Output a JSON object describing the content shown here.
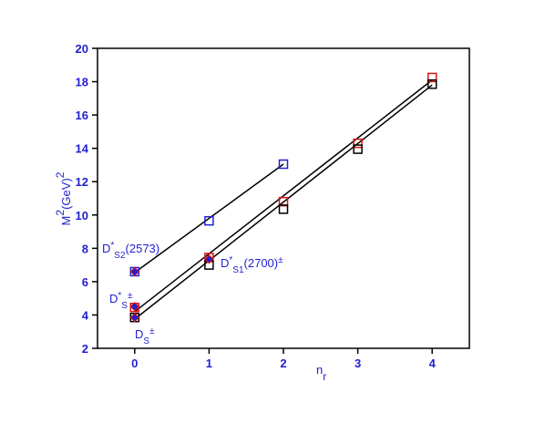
{
  "chart_data": {
    "type": "scatter",
    "xlabel": {
      "base": "n",
      "sub": "r"
    },
    "ylabel": {
      "base": "M",
      "sup": "2",
      "mid": "(GeV)",
      "sup2": "2"
    },
    "xlim": [
      -0.5,
      4.5
    ],
    "ylim": [
      2,
      20
    ],
    "xticks": [
      0,
      1,
      2,
      3,
      4
    ],
    "yticks": [
      2,
      4,
      6,
      8,
      10,
      12,
      14,
      16,
      18,
      20
    ],
    "axis_color": "#1f1fd0",
    "series": [
      {
        "marker": "open-square",
        "color": "#1f1fd0",
        "x": [
          0,
          1,
          2
        ],
        "values": [
          6.6,
          9.65,
          13.05
        ]
      },
      {
        "marker": "open-square",
        "color": "#e01010",
        "x": [
          0,
          1,
          2,
          3,
          4
        ],
        "values": [
          4.45,
          7.45,
          10.8,
          14.3,
          18.25
        ]
      },
      {
        "marker": "open-square",
        "color": "#000000",
        "x": [
          0,
          1,
          2,
          3,
          4
        ],
        "values": [
          3.85,
          7.0,
          10.35,
          13.95,
          17.85
        ]
      },
      {
        "marker": "filled",
        "color": "#1f1fd0",
        "x": [
          0,
          1,
          0,
          0
        ],
        "values": [
          6.6,
          7.35,
          4.5,
          3.85
        ]
      }
    ],
    "fits": [
      {
        "color": "#000000",
        "x": [
          0,
          2
        ],
        "values": [
          6.55,
          13.05
        ]
      },
      {
        "color": "#000000",
        "x": [
          0,
          4
        ],
        "values": [
          4.2,
          18.1
        ]
      },
      {
        "color": "#000000",
        "x": [
          0,
          4
        ],
        "values": [
          3.75,
          17.8
        ]
      }
    ],
    "annotations": [
      {
        "base": "D",
        "sup": "*",
        "sub": "S2",
        "tail": "(2573)"
      },
      {
        "base": "D",
        "sup": "*",
        "sub": "S1",
        "tail": "(2700)",
        "sup2": "±"
      },
      {
        "base": "D",
        "sup": "*",
        "sub": "S",
        "sup2": "±"
      },
      {
        "base": "D",
        "sub": "S",
        "sup2": "±"
      }
    ]
  }
}
